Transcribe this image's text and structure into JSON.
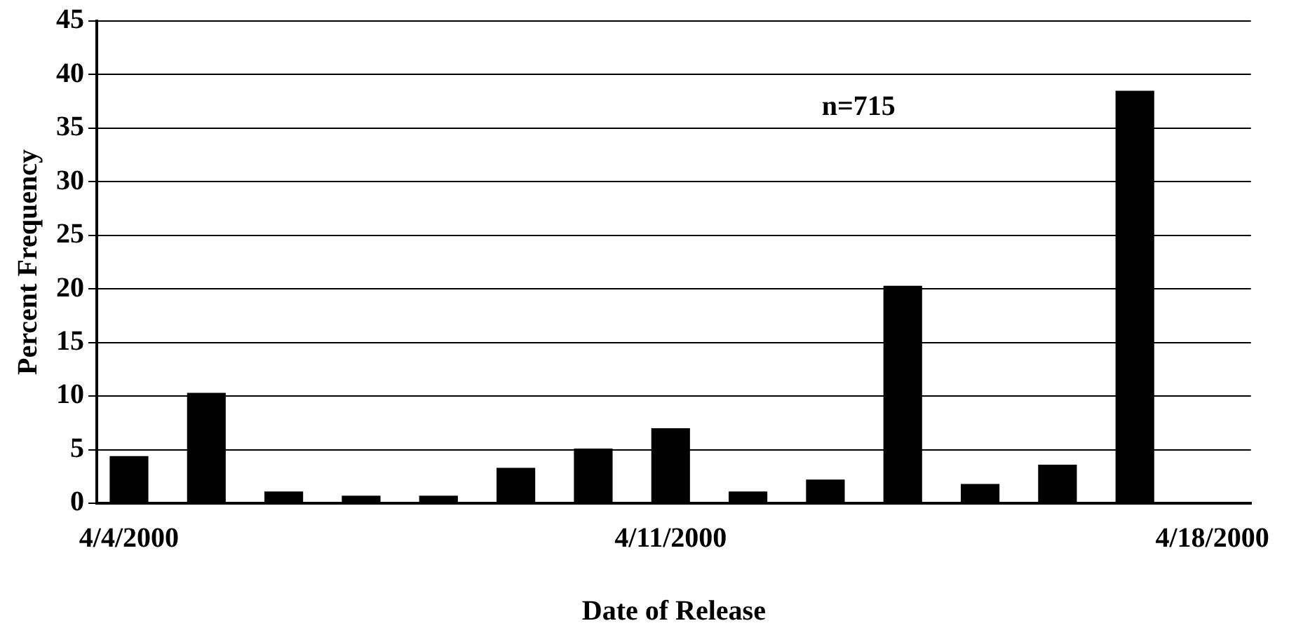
{
  "chart_data": {
    "type": "bar",
    "xlabel": "Date of Release",
    "ylabel": "Percent Frequency",
    "x": [
      "2000-04-04",
      "2000-04-05",
      "2000-04-06",
      "2000-04-07",
      "2000-04-08",
      "2000-04-09",
      "2000-04-10",
      "2000-04-11",
      "2000-04-12",
      "2000-04-13",
      "2000-04-14",
      "2000-04-15",
      "2000-04-16",
      "2000-04-17"
    ],
    "values": [
      4.4,
      10.3,
      1.1,
      0.7,
      0.7,
      3.3,
      5.1,
      7,
      1.1,
      2.2,
      20.3,
      1.8,
      3.6,
      38.5
    ],
    "color": "#000000",
    "xlim": [
      "2000-04-03T14:00",
      "2000-04-18T12:00"
    ],
    "xticks": [
      {
        "value": "2000-04-04",
        "label": "4/4/2000"
      },
      {
        "value": "2000-04-11",
        "label": "4/11/2000"
      },
      {
        "value": "2000-04-18",
        "label": "4/18/2000"
      }
    ],
    "ylim": [
      0,
      45
    ],
    "yticks": [
      0,
      5,
      10,
      15,
      20,
      25,
      30,
      35,
      40,
      45
    ],
    "grid": "y",
    "legend": false,
    "annotations": [
      "n=715"
    ]
  }
}
